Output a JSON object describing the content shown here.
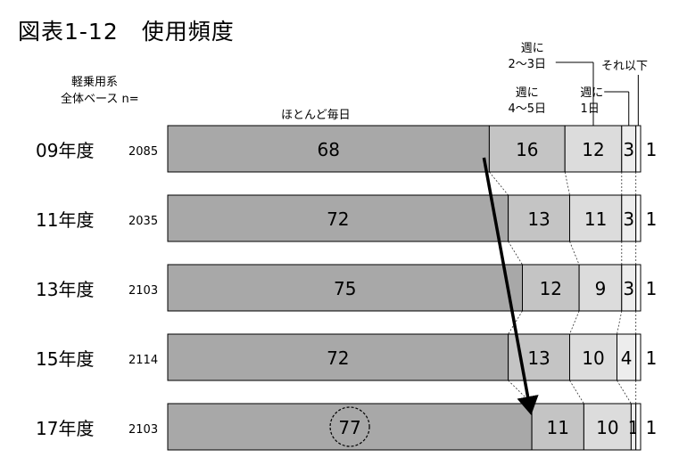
{
  "title": "図表1-12　使用頻度",
  "base_label": [
    "軽乗用系",
    "全体ベース n="
  ],
  "chart_data": {
    "type": "bar",
    "stacked": true,
    "orientation": "horizontal",
    "percent": true,
    "categories": [
      "09年度",
      "11年度",
      "13年度",
      "15年度",
      "17年度"
    ],
    "n": [
      "2085",
      "2035",
      "2103",
      "2114",
      "2103"
    ],
    "series": [
      {
        "name": "ほとんど毎日",
        "values": [
          68,
          72,
          75,
          72,
          77
        ],
        "color": "#a8a8a8"
      },
      {
        "name": "週に 4～5日",
        "values": [
          16,
          13,
          12,
          13,
          11
        ],
        "color": "#c4c4c4"
      },
      {
        "name": "週に 2～3日",
        "values": [
          12,
          11,
          9,
          10,
          10
        ],
        "color": "#dcdcdc"
      },
      {
        "name": "週に 1日",
        "values": [
          3,
          3,
          3,
          4,
          1
        ],
        "color": "#ededed"
      },
      {
        "name": "それ以下",
        "values": [
          1,
          1,
          1,
          1,
          1
        ],
        "color": "#ffffff"
      }
    ],
    "legend_lines": {
      "s1": [
        "週に",
        "4～5日"
      ],
      "s2": [
        "週に",
        "2～3日"
      ],
      "s3": [
        "週に",
        "1日"
      ],
      "s4": [
        "それ以下"
      ]
    },
    "annotations": {
      "arrow": "from 09年度 ほとんど毎日 end to 17年度 ほとんど毎日 end",
      "circled": "77"
    }
  }
}
